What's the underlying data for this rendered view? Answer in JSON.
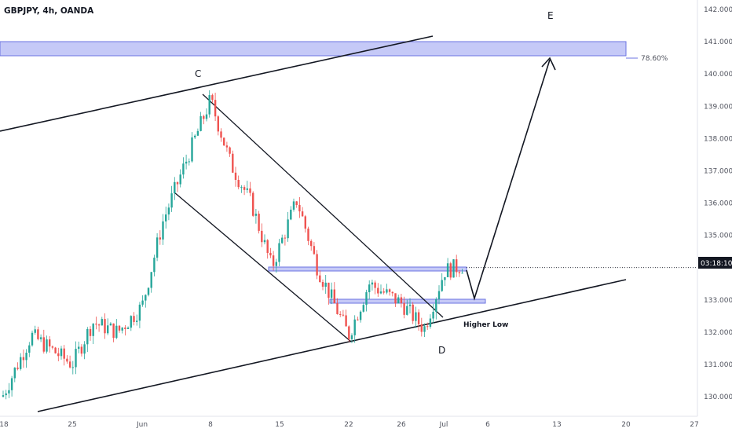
{
  "header": {
    "symbol_line": "GBPJPY, 4h, OANDA"
  },
  "price_axis": {
    "ticks": [
      "142.000",
      "141.000",
      "140.000",
      "139.000",
      "138.000",
      "137.000",
      "136.000",
      "135.000",
      "134.000",
      "133.000",
      "132.000",
      "131.000",
      "130.000"
    ],
    "current_price_label": "03:18:10",
    "fib_label": "78.60%"
  },
  "time_axis": {
    "ticks": [
      "18",
      "25",
      "Jun",
      "8",
      "15",
      "22",
      "26",
      "Jul",
      "6",
      "13",
      "20",
      "27"
    ]
  },
  "annotations": {
    "wave_c": "C",
    "wave_d": "D",
    "wave_e": "E",
    "higher_low": "Higher Low"
  },
  "colors": {
    "up_candle": "#26a69a",
    "down_candle": "#ef5350",
    "zone_fill": "#c5c9f7",
    "zone_border": "#6b73e0",
    "line": "#131722",
    "price_tag": "#131722"
  },
  "chart_data": {
    "type": "candlestick",
    "title": "GBPJPY, 4h, OANDA",
    "ylim": [
      129.7,
      142.2
    ],
    "x_ticks": [
      "18",
      "25",
      "Jun",
      "8",
      "15",
      "22",
      "26",
      "Jul",
      "6",
      "13",
      "20",
      "27"
    ],
    "close_path": [
      {
        "x": "18 May",
        "y": 130.0
      },
      {
        "x": "21 May",
        "y": 131.9
      },
      {
        "x": "25 May",
        "y": 131.0
      },
      {
        "x": "27 May",
        "y": 132.3
      },
      {
        "x": "29 May",
        "y": 132.0
      },
      {
        "x": "1 Jun",
        "y": 132.8
      },
      {
        "x": "3 Jun",
        "y": 135.4
      },
      {
        "x": "5 Jun",
        "y": 137.0
      },
      {
        "x": "8 Jun",
        "y": 139.2
      },
      {
        "x": "10 Jun",
        "y": 137.2
      },
      {
        "x": "12 Jun",
        "y": 136.0
      },
      {
        "x": "15 Jun",
        "y": 134.0
      },
      {
        "x": "17 Jun",
        "y": 136.1
      },
      {
        "x": "19 Jun",
        "y": 134.0
      },
      {
        "x": "22 Jun",
        "y": 131.9
      },
      {
        "x": "24 Jun",
        "y": 133.5
      },
      {
        "x": "26 Jun",
        "y": 132.9
      },
      {
        "x": "29 Jun",
        "y": 132.1
      },
      {
        "x": "1 Jul",
        "y": 133.9
      },
      {
        "x": "3 Jul",
        "y": 134.1
      }
    ],
    "zones": [
      {
        "name": "78.60%",
        "low": 140.5,
        "high": 141.0
      },
      {
        "low": 133.9,
        "high": 134.0
      },
      {
        "low": 132.9,
        "high": 133.0
      }
    ],
    "last_price": 134.0
  }
}
